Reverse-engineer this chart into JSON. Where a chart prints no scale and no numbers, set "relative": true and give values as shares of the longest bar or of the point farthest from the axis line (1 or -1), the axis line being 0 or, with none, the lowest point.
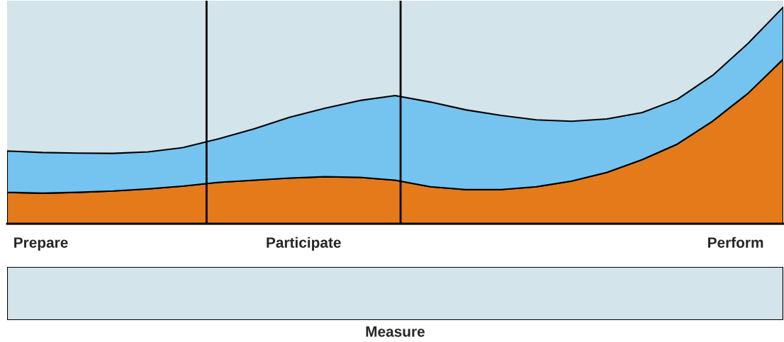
{
  "chart_data": [
    {
      "type": "area",
      "stacked": true,
      "relative": true,
      "categories": [
        null,
        null,
        null,
        null,
        null,
        null,
        null,
        null,
        null,
        null,
        null,
        null,
        null,
        null,
        null,
        null,
        null,
        null,
        null,
        null,
        null,
        null,
        null
      ],
      "series": [
        {
          "color": "#e57a1a",
          "values": [
            0.145,
            0.141,
            0.145,
            0.151,
            0.161,
            0.174,
            0.191,
            0.201,
            0.211,
            0.217,
            0.214,
            0.201,
            0.171,
            0.158,
            0.158,
            0.171,
            0.197,
            0.237,
            0.296,
            0.368,
            0.474,
            0.602,
            0.76
          ]
        },
        {
          "color": "#74c4ef",
          "values": [
            0.191,
            0.188,
            0.181,
            0.174,
            0.171,
            0.178,
            0.201,
            0.237,
            0.28,
            0.316,
            0.355,
            0.391,
            0.391,
            0.368,
            0.342,
            0.309,
            0.276,
            0.247,
            0.217,
            0.207,
            0.211,
            0.23,
            0.24
          ]
        }
      ],
      "annotations": [
        "Prepare",
        "Participate",
        "Perform"
      ]
    },
    {
      "type": "other",
      "xlabel": "Measure"
    }
  ]
}
